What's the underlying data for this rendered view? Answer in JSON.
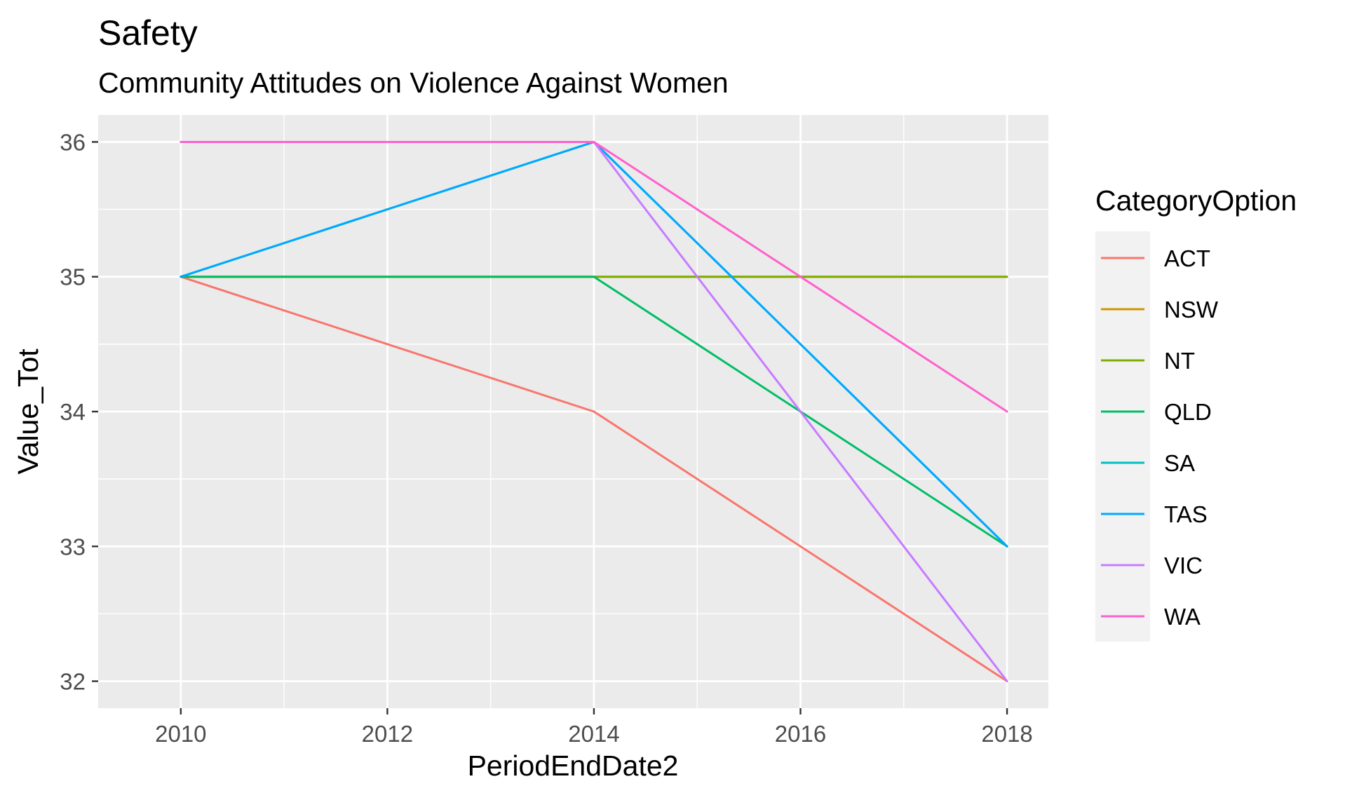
{
  "chart_data": {
    "type": "line",
    "title": "Safety",
    "subtitle": "Community Attitudes on Violence Against Women",
    "xlabel": "PeriodEndDate2",
    "ylabel": "Value_Tot",
    "x": [
      2010,
      2014,
      2018
    ],
    "xlim": [
      2009.2,
      2018.4
    ],
    "ylim": [
      31.8,
      36.2
    ],
    "x_ticks": [
      "2010",
      "2012",
      "2014",
      "2016",
      "2018"
    ],
    "y_ticks": [
      "32",
      "33",
      "34",
      "35",
      "36"
    ],
    "grid": true,
    "legend": {
      "title": "CategoryOption",
      "position": "right"
    },
    "series": [
      {
        "name": "ACT",
        "color": "#F8766D",
        "values": [
          35,
          34,
          32
        ]
      },
      {
        "name": "NSW",
        "color": "#CD9600",
        "values": [
          35,
          35,
          35
        ]
      },
      {
        "name": "NT",
        "color": "#7CAE00",
        "values": [
          35,
          35,
          35
        ]
      },
      {
        "name": "QLD",
        "color": "#00BE67",
        "values": [
          35,
          35,
          33
        ]
      },
      {
        "name": "SA",
        "color": "#00BFC4",
        "values": [
          35,
          36,
          33
        ]
      },
      {
        "name": "TAS",
        "color": "#00A9FF",
        "values": [
          35,
          36,
          33
        ]
      },
      {
        "name": "VIC",
        "color": "#C77CFF",
        "values": [
          36,
          36,
          32
        ]
      },
      {
        "name": "WA",
        "color": "#FF61CC",
        "values": [
          36,
          36,
          34
        ]
      }
    ]
  }
}
